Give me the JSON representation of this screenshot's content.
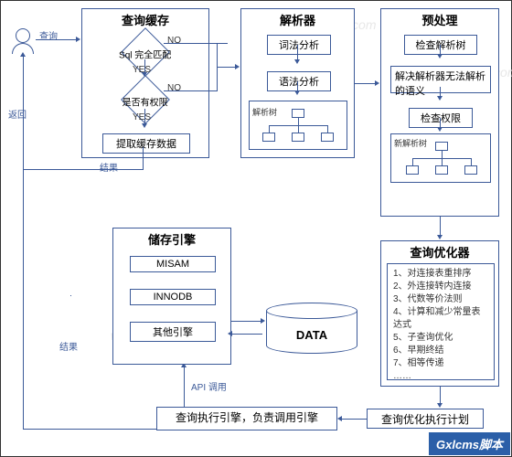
{
  "colors": {
    "line": "#3b5998",
    "bg": "#ffffff",
    "watermark": "#e8e8e8",
    "logo_bg": "#2b5fa8"
  },
  "user": {
    "query": "查询",
    "return": "返回"
  },
  "cache": {
    "title": "查询缓存",
    "d1": "Sql 完全匹配",
    "d2": "是否有权限",
    "yes": "YES",
    "no": "NO",
    "extract": "提取缓存数据",
    "result": "结果"
  },
  "parser": {
    "title": "解析器",
    "lex": "词法分析",
    "syntax": "语法分析",
    "tree_label": "解析树"
  },
  "pre": {
    "title": "预处理",
    "check_tree": "检查解析树",
    "resolve": "解决解析器无法解析的语义",
    "check_perm": "检查权限",
    "new_tree": "新解析树"
  },
  "storage": {
    "title": "储存引擎",
    "e1": "MISAM",
    "e2": "INNODB",
    "e3": "其他引擎",
    "result": "结果",
    "api": "API 调用"
  },
  "data": {
    "label": "DATA"
  },
  "optimizer": {
    "title": "查询优化器",
    "items": [
      "1、对连接表重排序",
      "2、外连接转内连接",
      "3、代数等价法则",
      "4、计算和减少常量表达式",
      "5、子查询优化",
      "6、早期终结",
      "7、相等传递",
      "……"
    ]
  },
  "plan": {
    "label": "查询优化执行计划"
  },
  "exec": {
    "label": "查询执行引擎，负责调用引擎"
  },
  "footer": {
    "logo": "Gxlcms脚本"
  },
  "wm": {
    "t1": "www.phpben.com",
    "t2": "www.phpben.com",
    "t3": "www.phpben.com"
  }
}
